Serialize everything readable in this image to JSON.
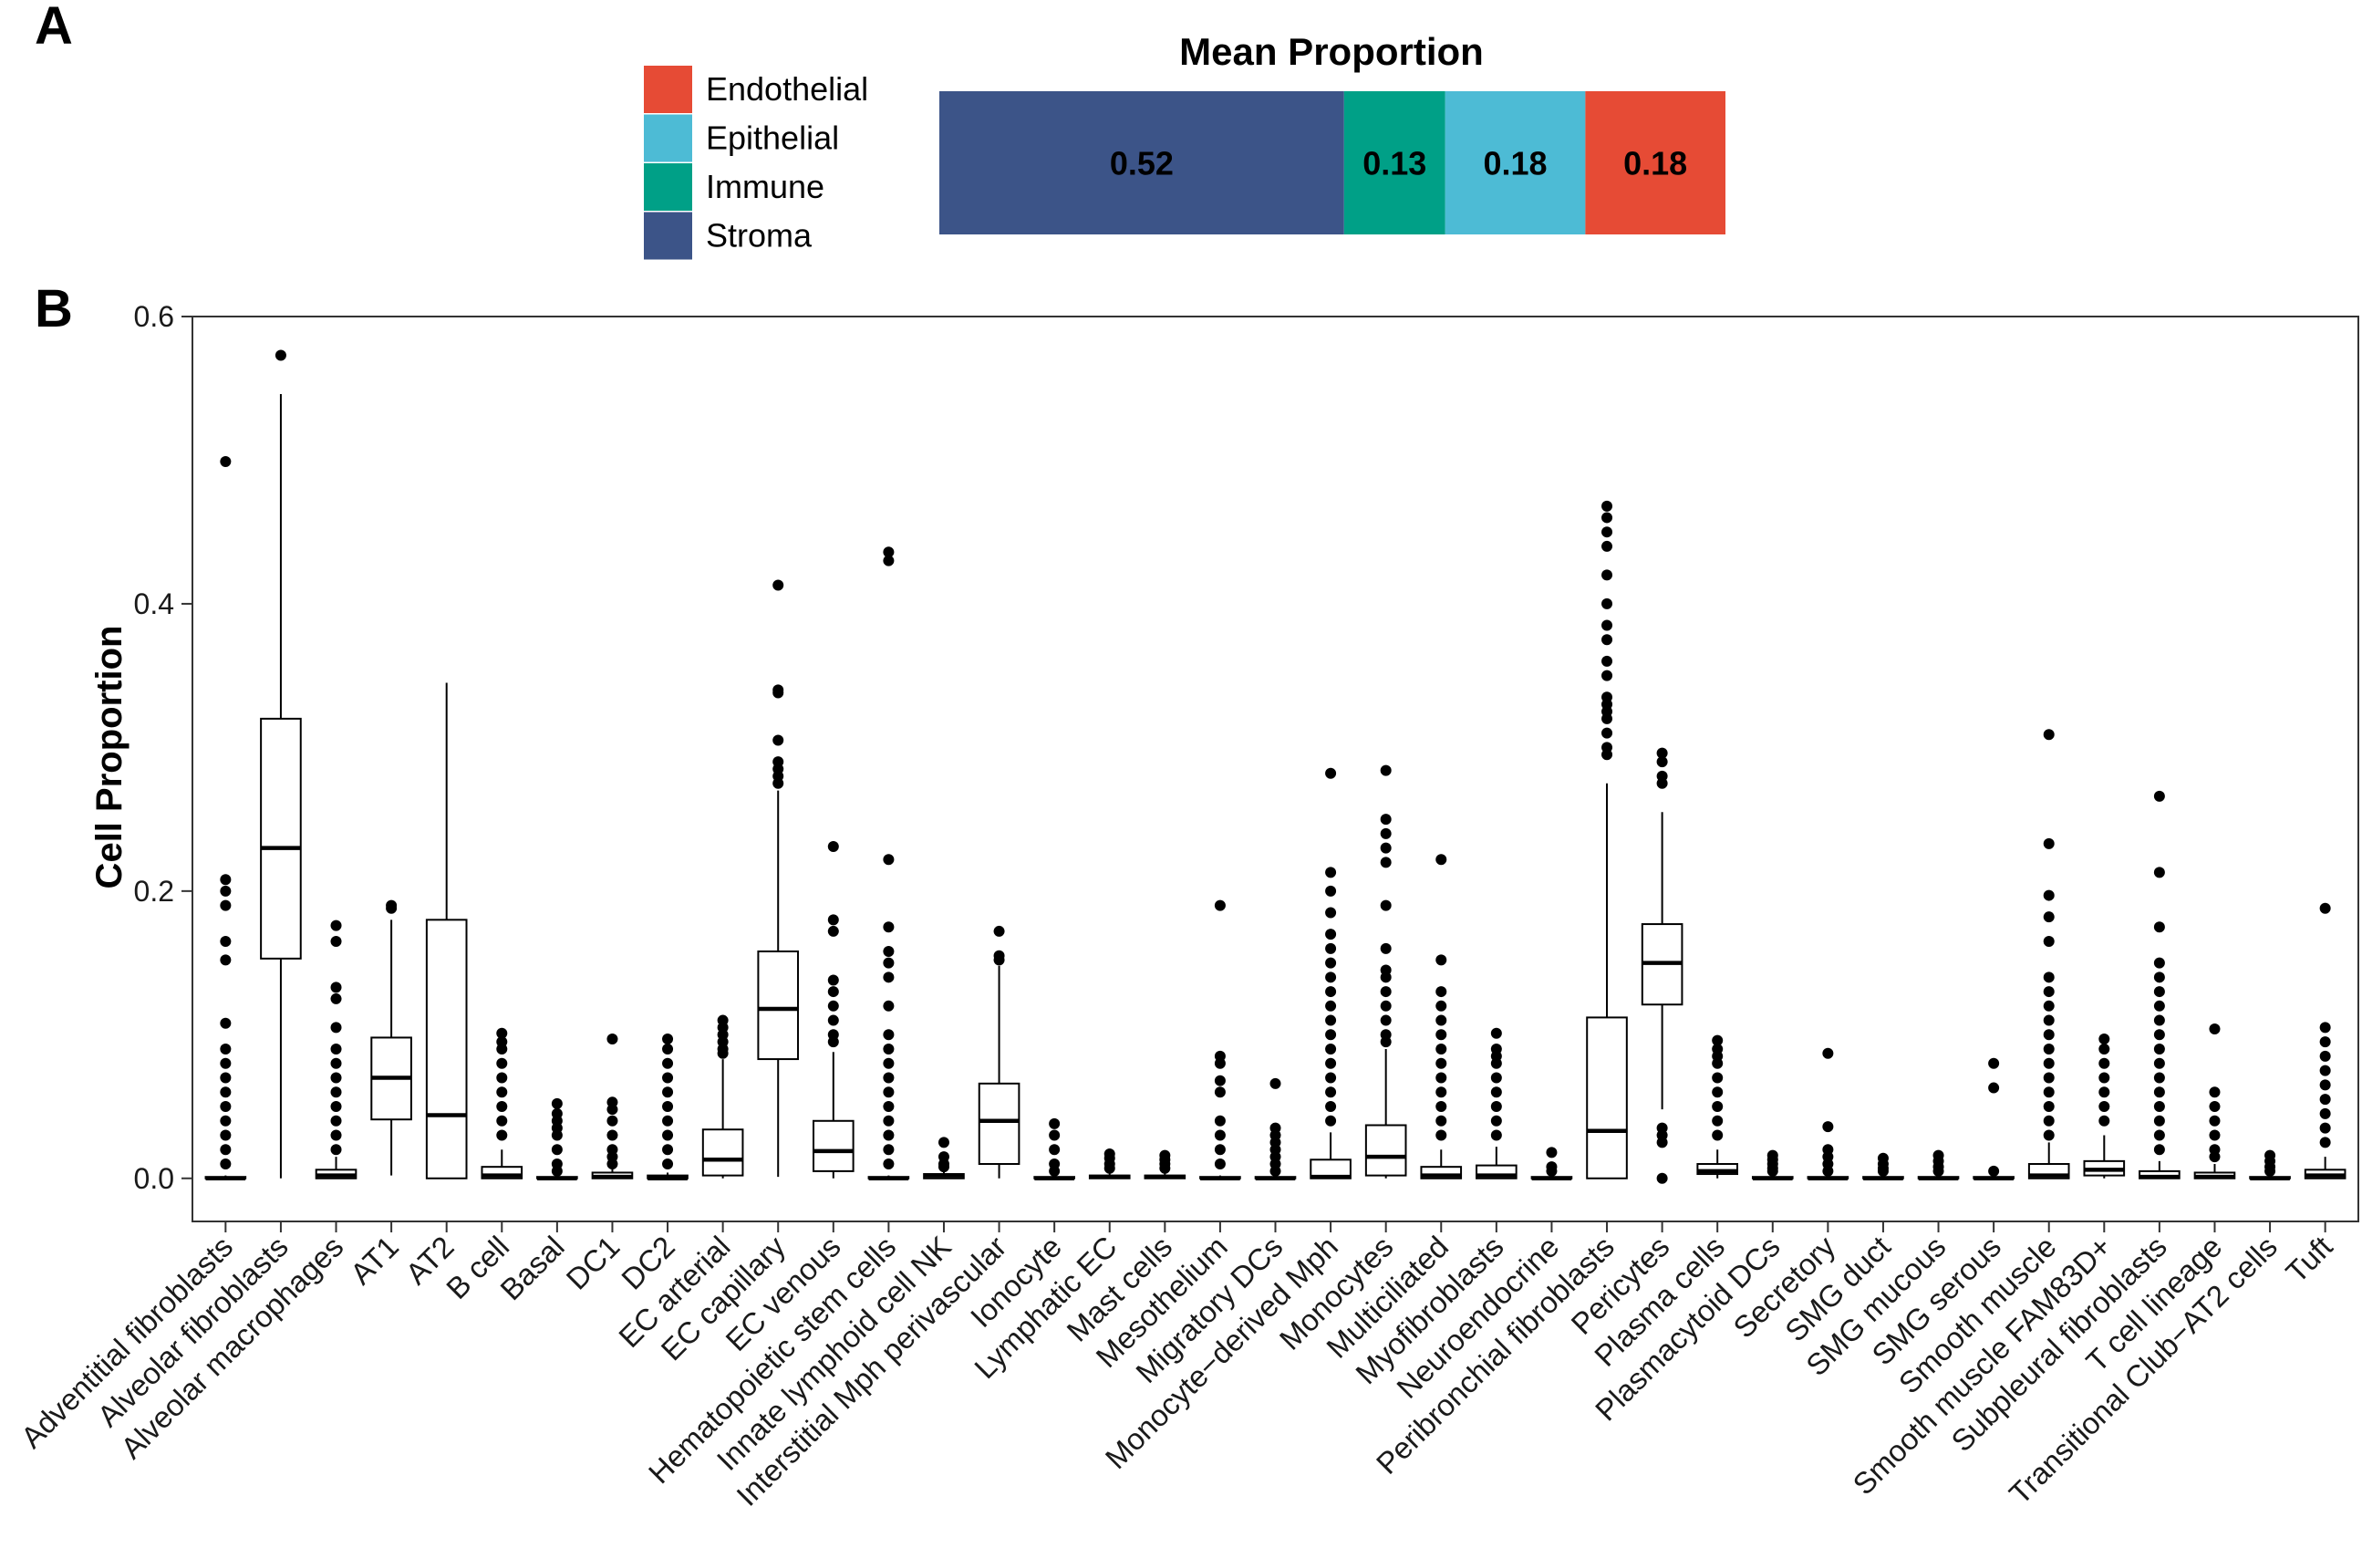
{
  "panels": {
    "a": "A",
    "b": "B"
  },
  "colors": {
    "Endothelial": "#e64b35",
    "Epithelial": "#4dbbd5",
    "Immune": "#00a087",
    "Stroma": "#3c5488"
  },
  "chart_data": [
    {
      "type": "stacked-bar",
      "title": "Mean Proportion",
      "legend": [
        "Endothelial",
        "Epithelial",
        "Immune",
        "Stroma"
      ],
      "legend_position": "left",
      "segments": [
        {
          "name": "Stroma",
          "value": 0.52,
          "label": "0.52"
        },
        {
          "name": "Immune",
          "value": 0.13,
          "label": "0.13"
        },
        {
          "name": "Epithelial",
          "value": 0.18,
          "label": "0.18"
        },
        {
          "name": "Endothelial",
          "value": 0.18,
          "label": "0.18"
        }
      ]
    },
    {
      "type": "boxplot",
      "title": "",
      "xlabel": "",
      "ylabel": "Cell Proportion",
      "ylim": [
        -0.03,
        0.6
      ],
      "yticks": [
        "0.0",
        "0.2",
        "0.4",
        "0.6"
      ],
      "ytick_values": [
        0.0,
        0.2,
        0.4,
        0.6
      ],
      "grid": false,
      "categories": [
        "Adventitial fibroblasts",
        "Alveolar fibroblasts",
        "Alveolar macrophages",
        "AT1",
        "AT2",
        "B cell",
        "Basal",
        "DC1",
        "DC2",
        "EC arterial",
        "EC capillary",
        "EC venous",
        "Hematopoietic stem cells",
        "Innate lymphoid cell NK",
        "Interstitial Mph perivascular",
        "Ionocyte",
        "Lymphatic EC",
        "Mast cells",
        "Mesothelium",
        "Migratory DCs",
        "Monocyte−derived Mph",
        "Monocytes",
        "Multiciliated",
        "Myofibroblasts",
        "Neuroendocrine",
        "Peribronchial fibroblasts",
        "Pericytes",
        "Plasma cells",
        "Plasmacytoid DCs",
        "Secretory",
        "SMG duct",
        "SMG mucous",
        "SMG serous",
        "Smooth muscle",
        "Smooth muscle FAM83D+",
        "Subpleural fibroblasts",
        "T cell lineage",
        "Transitional Club−AT2 cells",
        "Tuft"
      ],
      "boxes": [
        {
          "q1": 0.0,
          "median": 0.0,
          "q3": 0.001,
          "whisker_low": 0.0,
          "whisker_high": 0.002,
          "outliers": [
            0.499,
            0.208,
            0.2,
            0.19,
            0.165,
            0.152,
            0.108,
            0.09,
            0.08,
            0.07,
            0.06,
            0.05,
            0.04,
            0.03,
            0.02,
            0.01
          ]
        },
        {
          "q1": 0.153,
          "median": 0.23,
          "q3": 0.32,
          "whisker_low": 0.0,
          "whisker_high": 0.546,
          "outliers": [
            0.573
          ]
        },
        {
          "q1": 0.0,
          "median": 0.002,
          "q3": 0.006,
          "whisker_low": 0.0,
          "whisker_high": 0.015,
          "outliers": [
            0.176,
            0.165,
            0.133,
            0.125,
            0.105,
            0.09,
            0.08,
            0.07,
            0.06,
            0.05,
            0.04,
            0.03,
            0.02
          ]
        },
        {
          "q1": 0.041,
          "median": 0.07,
          "q3": 0.098,
          "whisker_low": 0.002,
          "whisker_high": 0.18,
          "outliers": [
            0.19,
            0.188
          ]
        },
        {
          "q1": 0.0,
          "median": 0.044,
          "q3": 0.18,
          "whisker_low": 0.0,
          "whisker_high": 0.345,
          "outliers": []
        },
        {
          "q1": 0.0,
          "median": 0.002,
          "q3": 0.008,
          "whisker_low": 0.0,
          "whisker_high": 0.02,
          "outliers": [
            0.101,
            0.095,
            0.09,
            0.08,
            0.07,
            0.06,
            0.05,
            0.04,
            0.03
          ]
        },
        {
          "q1": 0.0,
          "median": 0.0,
          "q3": 0.001,
          "whisker_low": 0.0,
          "whisker_high": 0.003,
          "outliers": [
            0.052,
            0.045,
            0.04,
            0.035,
            0.03,
            0.02,
            0.01,
            0.005
          ]
        },
        {
          "q1": 0.0,
          "median": 0.001,
          "q3": 0.004,
          "whisker_low": 0.0,
          "whisker_high": 0.008,
          "outliers": [
            0.097,
            0.053,
            0.048,
            0.04,
            0.03,
            0.02,
            0.015,
            0.01
          ]
        },
        {
          "q1": 0.0,
          "median": 0.0,
          "q3": 0.002,
          "whisker_low": 0.0,
          "whisker_high": 0.004,
          "outliers": [
            0.097,
            0.09,
            0.08,
            0.07,
            0.06,
            0.05,
            0.04,
            0.03,
            0.02,
            0.01
          ]
        },
        {
          "q1": 0.002,
          "median": 0.013,
          "q3": 0.034,
          "whisker_low": 0.0,
          "whisker_high": 0.083,
          "outliers": [
            0.11,
            0.105,
            0.1,
            0.095,
            0.09,
            0.087
          ]
        },
        {
          "q1": 0.083,
          "median": 0.118,
          "q3": 0.158,
          "whisker_low": 0.001,
          "whisker_high": 0.27,
          "outliers": [
            0.413,
            0.34,
            0.338,
            0.305,
            0.29,
            0.285,
            0.28,
            0.275
          ]
        },
        {
          "q1": 0.005,
          "median": 0.019,
          "q3": 0.04,
          "whisker_low": 0.0,
          "whisker_high": 0.088,
          "outliers": [
            0.231,
            0.18,
            0.172,
            0.138,
            0.13,
            0.12,
            0.11,
            0.1,
            0.095
          ]
        },
        {
          "q1": 0.0,
          "median": 0.0,
          "q3": 0.001,
          "whisker_low": 0.0,
          "whisker_high": 0.002,
          "outliers": [
            0.436,
            0.43,
            0.222,
            0.175,
            0.158,
            0.15,
            0.14,
            0.12,
            0.1,
            0.09,
            0.08,
            0.07,
            0.06,
            0.05,
            0.04,
            0.03,
            0.02,
            0.01
          ]
        },
        {
          "q1": 0.0,
          "median": 0.002,
          "q3": 0.003,
          "whisker_low": 0.0,
          "whisker_high": 0.005,
          "outliers": [
            0.025,
            0.015,
            0.01,
            0.008
          ]
        },
        {
          "q1": 0.01,
          "median": 0.04,
          "q3": 0.066,
          "whisker_low": 0.0,
          "whisker_high": 0.148,
          "outliers": [
            0.172,
            0.155,
            0.152
          ]
        },
        {
          "q1": 0.0,
          "median": 0.0,
          "q3": 0.001,
          "whisker_low": 0.0,
          "whisker_high": 0.002,
          "outliers": [
            0.038,
            0.03,
            0.02,
            0.01,
            0.005
          ]
        },
        {
          "q1": 0.0,
          "median": 0.001,
          "q3": 0.002,
          "whisker_low": 0.0,
          "whisker_high": 0.004,
          "outliers": [
            0.017,
            0.014,
            0.01,
            0.007
          ]
        },
        {
          "q1": 0.0,
          "median": 0.001,
          "q3": 0.002,
          "whisker_low": 0.0,
          "whisker_high": 0.004,
          "outliers": [
            0.016,
            0.013,
            0.01,
            0.007
          ]
        },
        {
          "q1": 0.0,
          "median": 0.0,
          "q3": 0.001,
          "whisker_low": 0.0,
          "whisker_high": 0.002,
          "outliers": [
            0.19,
            0.085,
            0.08,
            0.068,
            0.06,
            0.04,
            0.03,
            0.02,
            0.01
          ]
        },
        {
          "q1": 0.0,
          "median": 0.0,
          "q3": 0.001,
          "whisker_low": 0.0,
          "whisker_high": 0.002,
          "outliers": [
            0.066,
            0.035,
            0.03,
            0.025,
            0.02,
            0.015,
            0.01,
            0.005
          ]
        },
        {
          "q1": 0.0,
          "median": 0.001,
          "q3": 0.013,
          "whisker_low": 0.0,
          "whisker_high": 0.032,
          "outliers": [
            0.282,
            0.213,
            0.2,
            0.185,
            0.17,
            0.16,
            0.15,
            0.14,
            0.13,
            0.12,
            0.11,
            0.1,
            0.09,
            0.08,
            0.07,
            0.06,
            0.05,
            0.04
          ]
        },
        {
          "q1": 0.002,
          "median": 0.015,
          "q3": 0.037,
          "whisker_low": 0.0,
          "whisker_high": 0.09,
          "outliers": [
            0.284,
            0.25,
            0.24,
            0.23,
            0.22,
            0.19,
            0.16,
            0.145,
            0.14,
            0.13,
            0.12,
            0.11,
            0.1,
            0.095
          ]
        },
        {
          "q1": 0.0,
          "median": 0.002,
          "q3": 0.008,
          "whisker_low": 0.0,
          "whisker_high": 0.02,
          "outliers": [
            0.222,
            0.152,
            0.13,
            0.12,
            0.11,
            0.1,
            0.09,
            0.08,
            0.07,
            0.06,
            0.05,
            0.04,
            0.03
          ]
        },
        {
          "q1": 0.0,
          "median": 0.002,
          "q3": 0.009,
          "whisker_low": 0.0,
          "whisker_high": 0.022,
          "outliers": [
            0.101,
            0.09,
            0.085,
            0.08,
            0.07,
            0.06,
            0.05,
            0.04,
            0.03
          ]
        },
        {
          "q1": 0.0,
          "median": 0.0,
          "q3": 0.001,
          "whisker_low": 0.0,
          "whisker_high": 0.002,
          "outliers": [
            0.018,
            0.008,
            0.005
          ]
        },
        {
          "q1": 0.0,
          "median": 0.033,
          "q3": 0.112,
          "whisker_low": 0.0,
          "whisker_high": 0.275,
          "outliers": [
            0.468,
            0.46,
            0.45,
            0.44,
            0.42,
            0.4,
            0.385,
            0.375,
            0.36,
            0.35,
            0.335,
            0.33,
            0.325,
            0.32,
            0.31,
            0.3,
            0.295
          ]
        },
        {
          "q1": 0.121,
          "median": 0.15,
          "q3": 0.177,
          "whisker_low": 0.048,
          "whisker_high": 0.255,
          "outliers": [
            0.296,
            0.29,
            0.28,
            0.275,
            0.035,
            0.03,
            0.025,
            0.0
          ]
        },
        {
          "q1": 0.003,
          "median": 0.005,
          "q3": 0.01,
          "whisker_low": 0.0,
          "whisker_high": 0.02,
          "outliers": [
            0.096,
            0.09,
            0.085,
            0.08,
            0.07,
            0.06,
            0.05,
            0.04,
            0.03
          ]
        },
        {
          "q1": 0.0,
          "median": 0.0,
          "q3": 0.001,
          "whisker_low": 0.0,
          "whisker_high": 0.002,
          "outliers": [
            0.016,
            0.013,
            0.01,
            0.007,
            0.005
          ]
        },
        {
          "q1": 0.0,
          "median": 0.0,
          "q3": 0.001,
          "whisker_low": 0.0,
          "whisker_high": 0.002,
          "outliers": [
            0.087,
            0.036,
            0.02,
            0.015,
            0.01,
            0.005
          ]
        },
        {
          "q1": 0.0,
          "median": 0.0,
          "q3": 0.001,
          "whisker_low": 0.0,
          "whisker_high": 0.002,
          "outliers": [
            0.014,
            0.01,
            0.007,
            0.005
          ]
        },
        {
          "q1": 0.0,
          "median": 0.0,
          "q3": 0.001,
          "whisker_low": 0.0,
          "whisker_high": 0.002,
          "outliers": [
            0.016,
            0.012,
            0.008,
            0.005
          ]
        },
        {
          "q1": 0.0,
          "median": 0.0,
          "q3": 0.001,
          "whisker_low": 0.0,
          "whisker_high": 0.002,
          "outliers": [
            0.08,
            0.063,
            0.005
          ]
        },
        {
          "q1": 0.0,
          "median": 0.002,
          "q3": 0.01,
          "whisker_low": 0.0,
          "whisker_high": 0.025,
          "outliers": [
            0.309,
            0.233,
            0.197,
            0.182,
            0.165,
            0.14,
            0.13,
            0.12,
            0.11,
            0.1,
            0.09,
            0.08,
            0.07,
            0.06,
            0.05,
            0.04,
            0.03
          ]
        },
        {
          "q1": 0.002,
          "median": 0.006,
          "q3": 0.012,
          "whisker_low": 0.0,
          "whisker_high": 0.03,
          "outliers": [
            0.097,
            0.09,
            0.08,
            0.07,
            0.06,
            0.05,
            0.04
          ]
        },
        {
          "q1": 0.0,
          "median": 0.001,
          "q3": 0.005,
          "whisker_low": 0.0,
          "whisker_high": 0.012,
          "outliers": [
            0.266,
            0.213,
            0.175,
            0.15,
            0.14,
            0.13,
            0.12,
            0.11,
            0.1,
            0.09,
            0.08,
            0.07,
            0.06,
            0.05,
            0.04,
            0.03,
            0.02
          ]
        },
        {
          "q1": 0.0,
          "median": 0.001,
          "q3": 0.004,
          "whisker_low": 0.0,
          "whisker_high": 0.01,
          "outliers": [
            0.104,
            0.06,
            0.05,
            0.04,
            0.03,
            0.02,
            0.015
          ]
        },
        {
          "q1": 0.0,
          "median": 0.0,
          "q3": 0.001,
          "whisker_low": 0.0,
          "whisker_high": 0.002,
          "outliers": [
            0.016,
            0.012,
            0.008,
            0.005
          ]
        },
        {
          "q1": 0.0,
          "median": 0.002,
          "q3": 0.006,
          "whisker_low": 0.0,
          "whisker_high": 0.015,
          "outliers": [
            0.188,
            0.105,
            0.095,
            0.085,
            0.075,
            0.065,
            0.055,
            0.045,
            0.035,
            0.025
          ]
        }
      ]
    }
  ]
}
